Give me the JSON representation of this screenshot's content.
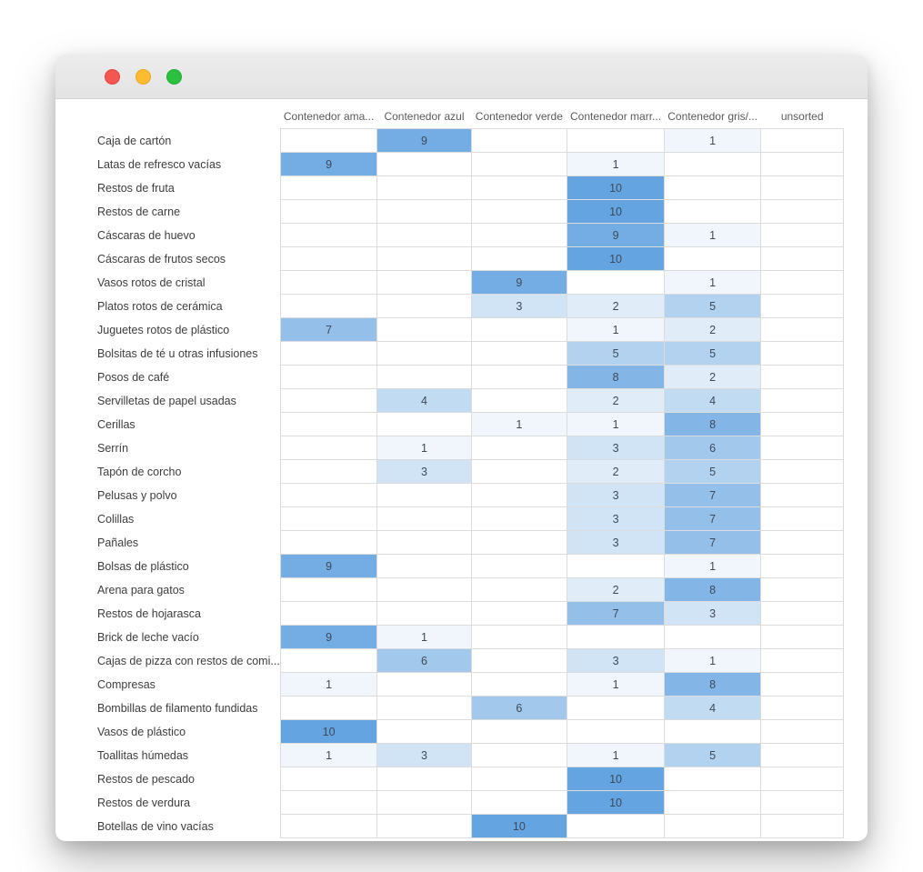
{
  "window": {
    "titlebar_buttons": [
      {
        "name": "close"
      },
      {
        "name": "minimize"
      },
      {
        "name": "zoom"
      }
    ]
  },
  "chart_data": {
    "type": "heatmap",
    "title": "",
    "columns": [
      "Contenedor ama...",
      "Contenedor azul",
      "Contenedor verde",
      "Contenedor marr...",
      "Contenedor gris/...",
      "unsorted"
    ],
    "rows": [
      "Caja de cartón",
      "Latas de refresco vacías",
      "Restos de fruta",
      "Restos de carne",
      "Cáscaras de huevo",
      "Cáscaras de frutos secos",
      "Vasos rotos de cristal",
      "Platos rotos de cerámica",
      "Juguetes rotos de plástico",
      "Bolsitas de té u otras infusiones",
      "Posos de café",
      "Servilletas de papel usadas",
      "Cerillas",
      "Serrín",
      "Tapón de corcho",
      "Pelusas y polvo",
      "Colillas",
      "Pañales",
      "Bolsas de plástico",
      "Arena para gatos",
      "Restos de hojarasca",
      "Brick de leche vacío",
      "Cajas de pizza con restos de comi...",
      "Compresas",
      "Bombillas de filamento fundidas",
      "Vasos de plástico",
      "Toallitas húmedas",
      "Restos de pescado",
      "Restos de verdura",
      "Botellas de vino vacías"
    ],
    "values": [
      [
        null,
        9,
        null,
        null,
        1,
        null
      ],
      [
        9,
        null,
        null,
        1,
        null,
        null
      ],
      [
        null,
        null,
        null,
        10,
        null,
        null
      ],
      [
        null,
        null,
        null,
        10,
        null,
        null
      ],
      [
        null,
        null,
        null,
        9,
        1,
        null
      ],
      [
        null,
        null,
        null,
        10,
        null,
        null
      ],
      [
        null,
        null,
        9,
        null,
        1,
        null
      ],
      [
        null,
        null,
        3,
        2,
        5,
        null
      ],
      [
        7,
        null,
        null,
        1,
        2,
        null
      ],
      [
        null,
        null,
        null,
        5,
        5,
        null
      ],
      [
        null,
        null,
        null,
        8,
        2,
        null
      ],
      [
        null,
        4,
        null,
        2,
        4,
        null
      ],
      [
        null,
        null,
        1,
        1,
        8,
        null
      ],
      [
        null,
        1,
        null,
        3,
        6,
        null
      ],
      [
        null,
        3,
        null,
        2,
        5,
        null
      ],
      [
        null,
        null,
        null,
        3,
        7,
        null
      ],
      [
        null,
        null,
        null,
        3,
        7,
        null
      ],
      [
        null,
        null,
        null,
        3,
        7,
        null
      ],
      [
        9,
        null,
        null,
        null,
        1,
        null
      ],
      [
        null,
        null,
        null,
        2,
        8,
        null
      ],
      [
        null,
        null,
        null,
        7,
        3,
        null
      ],
      [
        9,
        1,
        null,
        null,
        null,
        null
      ],
      [
        null,
        6,
        null,
        3,
        1,
        null
      ],
      [
        1,
        null,
        null,
        1,
        8,
        null
      ],
      [
        null,
        null,
        6,
        null,
        4,
        null
      ],
      [
        10,
        null,
        null,
        null,
        null,
        null
      ],
      [
        1,
        3,
        null,
        1,
        5,
        null
      ],
      [
        null,
        null,
        null,
        10,
        null,
        null
      ],
      [
        null,
        null,
        null,
        10,
        null,
        null
      ],
      [
        null,
        null,
        10,
        null,
        null,
        null
      ]
    ],
    "value_range": [
      0,
      10
    ],
    "cell_color_empty": "#ffffff",
    "cell_color_full": "#64a4e0",
    "grid": true,
    "legend": "none"
  }
}
